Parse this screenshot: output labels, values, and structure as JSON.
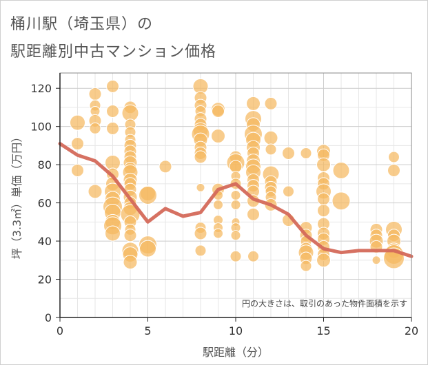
{
  "header": {
    "title_line1": "桶川駅（埼玉県）の",
    "title_line2": "駅距離別中古マンション価格"
  },
  "chart_data": {
    "type": "scatter",
    "title": "桶川駅（埼玉県）の駅距離別中古マンション価格",
    "xlabel": "駅距離（分）",
    "ylabel": "坪（3.3㎡）単価（万円）",
    "xlim": [
      0,
      20
    ],
    "ylim": [
      0,
      128
    ],
    "xticks": [
      "0",
      "5",
      "10",
      "15",
      "20"
    ],
    "yticks": [
      "0",
      "20",
      "40",
      "60",
      "80",
      "100",
      "120"
    ],
    "grid": true,
    "note": "円の大きさは、取引のあった物件面積を示す",
    "colors": {
      "bubble": "#f5b95f",
      "line": "#d4695a",
      "grid": "#dddddd",
      "axis": "#222222"
    },
    "series": [
      {
        "kind": "bubble",
        "points": [
          [
            1,
            102,
            11
          ],
          [
            1,
            91,
            9
          ],
          [
            1,
            77,
            9
          ],
          [
            2,
            117,
            9
          ],
          [
            2,
            111,
            8
          ],
          [
            2,
            108,
            7
          ],
          [
            2,
            103,
            9
          ],
          [
            2,
            99,
            8
          ],
          [
            2,
            66,
            10
          ],
          [
            3,
            121,
            9
          ],
          [
            3,
            108,
            9
          ],
          [
            3,
            99,
            9
          ],
          [
            3,
            81,
            11
          ],
          [
            3,
            75,
            9
          ],
          [
            3,
            70,
            10
          ],
          [
            3,
            66,
            12
          ],
          [
            3,
            62,
            11
          ],
          [
            3,
            58,
            14
          ],
          [
            3,
            55,
            12
          ],
          [
            3,
            50,
            11
          ],
          [
            3,
            48,
            13
          ],
          [
            3,
            44,
            11
          ],
          [
            4,
            110,
            9
          ],
          [
            4,
            107,
            12
          ],
          [
            4,
            101,
            8
          ],
          [
            4,
            97,
            8
          ],
          [
            4,
            93,
            8
          ],
          [
            4,
            90,
            9
          ],
          [
            4,
            87,
            9
          ],
          [
            4,
            84,
            9
          ],
          [
            4,
            81,
            10
          ],
          [
            4,
            78,
            9
          ],
          [
            4,
            76,
            11
          ],
          [
            4,
            72,
            10
          ],
          [
            4,
            70,
            9
          ],
          [
            4,
            67,
            9
          ],
          [
            4,
            63,
            10
          ],
          [
            4,
            60,
            9
          ],
          [
            4,
            57,
            10
          ],
          [
            4,
            54,
            14
          ],
          [
            4,
            50,
            9
          ],
          [
            4,
            46,
            8
          ],
          [
            4,
            43,
            9
          ],
          [
            4,
            35,
            12
          ],
          [
            4,
            33,
            11
          ],
          [
            4,
            29,
            10
          ],
          [
            5,
            65,
            11
          ],
          [
            5,
            64,
            13
          ],
          [
            5,
            38,
            13
          ],
          [
            5,
            36,
            12
          ],
          [
            6,
            79,
            9
          ],
          [
            8,
            121,
            11
          ],
          [
            8,
            115,
            9
          ],
          [
            8,
            111,
            9
          ],
          [
            8,
            108,
            8
          ],
          [
            8,
            104,
            9
          ],
          [
            8,
            101,
            9
          ],
          [
            8,
            98,
            11
          ],
          [
            8,
            96,
            13
          ],
          [
            8,
            93,
            10
          ],
          [
            8,
            89,
            9
          ],
          [
            8,
            86,
            9
          ],
          [
            8,
            84,
            9
          ],
          [
            8,
            68,
            6
          ],
          [
            8,
            47,
            8
          ],
          [
            8,
            44,
            9
          ],
          [
            8,
            35,
            8
          ],
          [
            9,
            109,
            10
          ],
          [
            9,
            108,
            9
          ],
          [
            9,
            95,
            10
          ],
          [
            9,
            67,
            9
          ],
          [
            9,
            64,
            7
          ],
          [
            9,
            59,
            7
          ],
          [
            9,
            51,
            7
          ],
          [
            9,
            47,
            7
          ],
          [
            9,
            44,
            7
          ],
          [
            10,
            84,
            9
          ],
          [
            10,
            81,
            13
          ],
          [
            10,
            79,
            9
          ],
          [
            10,
            74,
            7
          ],
          [
            10,
            70,
            8
          ],
          [
            10,
            64,
            7
          ],
          [
            10,
            59,
            7
          ],
          [
            10,
            50,
            6
          ],
          [
            10,
            47,
            7
          ],
          [
            10,
            43,
            7
          ],
          [
            10,
            32,
            8
          ],
          [
            11,
            112,
            10
          ],
          [
            11,
            104,
            12
          ],
          [
            11,
            101,
            10
          ],
          [
            11,
            96,
            13
          ],
          [
            11,
            93,
            11
          ],
          [
            11,
            89,
            10
          ],
          [
            11,
            86,
            9
          ],
          [
            11,
            82,
            10
          ],
          [
            11,
            79,
            11
          ],
          [
            11,
            76,
            11
          ],
          [
            11,
            72,
            9
          ],
          [
            11,
            69,
            9
          ],
          [
            11,
            66,
            9
          ],
          [
            11,
            61,
            9
          ],
          [
            11,
            54,
            9
          ],
          [
            11,
            32,
            8
          ],
          [
            12,
            112,
            9
          ],
          [
            12,
            94,
            10
          ],
          [
            12,
            88,
            8
          ],
          [
            12,
            75,
            12
          ],
          [
            12,
            71,
            9
          ],
          [
            12,
            68,
            9
          ],
          [
            12,
            66,
            8
          ],
          [
            12,
            63,
            8
          ],
          [
            12,
            59,
            9
          ],
          [
            13,
            86,
            9
          ],
          [
            13,
            66,
            8
          ],
          [
            13,
            51,
            9
          ],
          [
            14,
            86,
            8
          ],
          [
            14,
            47,
            9
          ],
          [
            14,
            43,
            9
          ],
          [
            14,
            40,
            8
          ],
          [
            14,
            36,
            9
          ],
          [
            14,
            34,
            11
          ],
          [
            14,
            31,
            9
          ],
          [
            14,
            27,
            8
          ],
          [
            15,
            87,
            10
          ],
          [
            15,
            85,
            9
          ],
          [
            15,
            80,
            10
          ],
          [
            15,
            73,
            9
          ],
          [
            15,
            70,
            9
          ],
          [
            15,
            66,
            11
          ],
          [
            15,
            62,
            9
          ],
          [
            15,
            56,
            9
          ],
          [
            15,
            49,
            9
          ],
          [
            15,
            44,
            9
          ],
          [
            15,
            41,
            9
          ],
          [
            15,
            37,
            9
          ],
          [
            15,
            33,
            9
          ],
          [
            15,
            30,
            10
          ],
          [
            16,
            77,
            12
          ],
          [
            16,
            61,
            13
          ],
          [
            18,
            46,
            9
          ],
          [
            18,
            43,
            9
          ],
          [
            18,
            40,
            10
          ],
          [
            18,
            37,
            9
          ],
          [
            18,
            30,
            6
          ],
          [
            19,
            84,
            8
          ],
          [
            19,
            77,
            9
          ],
          [
            19,
            46,
            12
          ],
          [
            19,
            43,
            9
          ],
          [
            19,
            40,
            10
          ],
          [
            19,
            35,
            11
          ],
          [
            19,
            33,
            14
          ],
          [
            19,
            31,
            15
          ]
        ]
      },
      {
        "kind": "line",
        "x": [
          0,
          1,
          2,
          3,
          4,
          5,
          6,
          7,
          8,
          9,
          10,
          11,
          12,
          13,
          14,
          15,
          16,
          17,
          18,
          19,
          20
        ],
        "y": [
          91,
          85,
          82,
          74,
          62,
          50,
          57,
          53,
          55,
          67,
          70,
          62,
          59,
          54,
          43,
          36,
          34,
          35,
          35,
          35,
          32
        ]
      }
    ]
  }
}
